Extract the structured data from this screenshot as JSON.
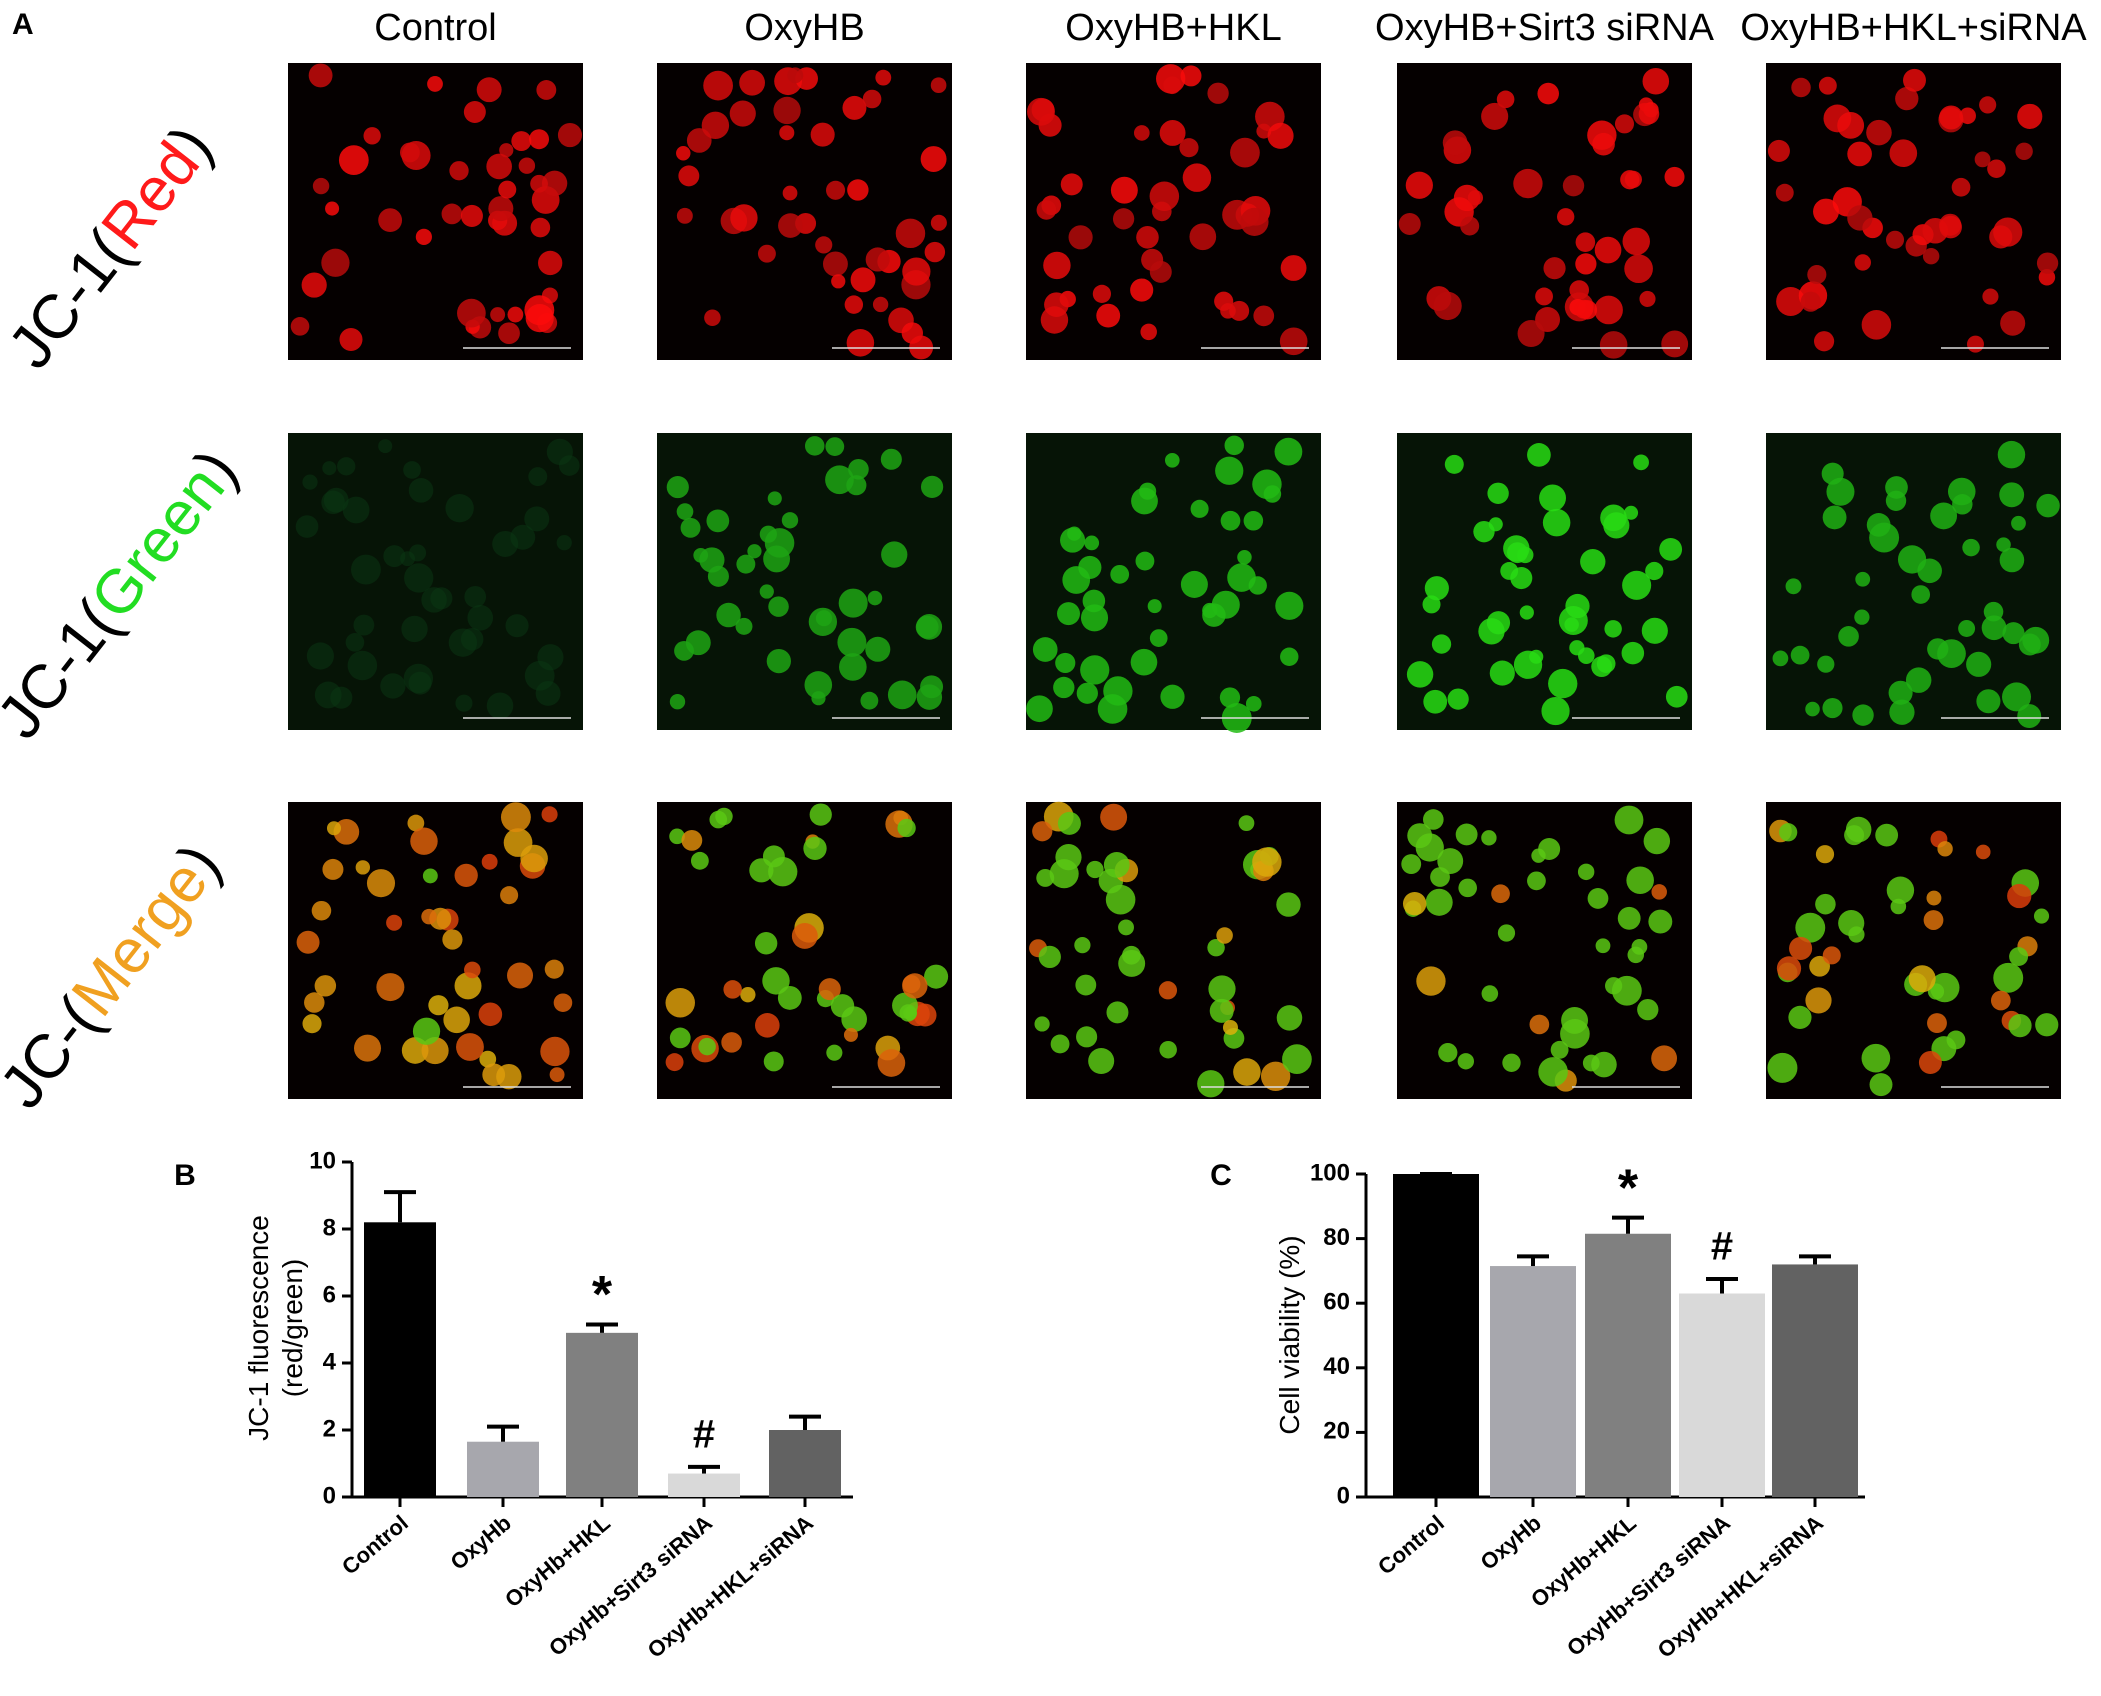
{
  "panel_a": {
    "label": "A",
    "columns": [
      "Control",
      "OxyHB",
      "OxyHB+HKL",
      "OxyHB+Sirt3 siRNA",
      "OxyHB+HKL+siRNA"
    ],
    "rows": [
      {
        "prefix": "JC-1(",
        "stain": "Red",
        "suffix": ")"
      },
      {
        "prefix": "JC-1(",
        "stain": "Green",
        "suffix": ")"
      },
      {
        "prefix": "JC-(",
        "stain": "Merge",
        "suffix": ")"
      }
    ]
  },
  "chart_data": [
    {
      "type": "bar",
      "label": "B",
      "ylabel": [
        "JC-1 fluorescence",
        "(red/green)"
      ],
      "categories": [
        "Control",
        "OxyHb",
        "OxyHb+HKL",
        "OxyHb+Sirt3 siRNA",
        "OxyHb+HKL+siRNA"
      ],
      "values": [
        8.2,
        1.65,
        4.9,
        0.7,
        2.0
      ],
      "errors": [
        0.9,
        0.45,
        0.25,
        0.2,
        0.4
      ],
      "colors": [
        "#000000",
        "#a7a7ad",
        "#808080",
        "#d9d9d9",
        "#626262"
      ],
      "bar_annotations": [
        null,
        null,
        "*",
        "#",
        null
      ],
      "ylim": [
        0,
        10
      ],
      "yticks": [
        0,
        2,
        4,
        6,
        8,
        10
      ]
    },
    {
      "type": "bar",
      "label": "C",
      "ylabel": [
        "Cell viability (%)"
      ],
      "categories": [
        "Control",
        "OxyHb",
        "OxyHb+HKL",
        "OxyHb+Sirt3 siRNA",
        "OxyHb+HKL+siRNA"
      ],
      "values": [
        100,
        71.5,
        81.5,
        63,
        72
      ],
      "errors": [
        0,
        3,
        5,
        4.5,
        2.5
      ],
      "colors": [
        "#000000",
        "#a7a7ad",
        "#808080",
        "#d9d9d9",
        "#626262"
      ],
      "bar_annotations": [
        null,
        null,
        "*",
        "#",
        null
      ],
      "ylim": [
        0,
        100
      ],
      "yticks": [
        0,
        20,
        40,
        60,
        80,
        100
      ]
    }
  ]
}
